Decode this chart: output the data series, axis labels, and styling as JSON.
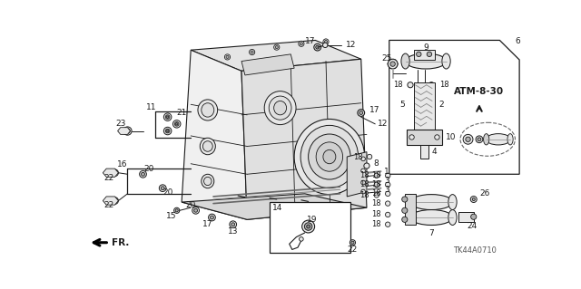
{
  "bg_color": "#ffffff",
  "line_color": "#1a1a1a",
  "text_color": "#1a1a1a",
  "gray_fill": "#c8c8c8",
  "light_gray": "#e8e8e8",
  "mid_gray": "#b0b0b0",
  "dark_gray": "#888888",
  "figsize": [
    6.4,
    3.19
  ],
  "dpi": 100,
  "diagram_code": "TK44A0710",
  "atm_label": "ATM-8-30"
}
